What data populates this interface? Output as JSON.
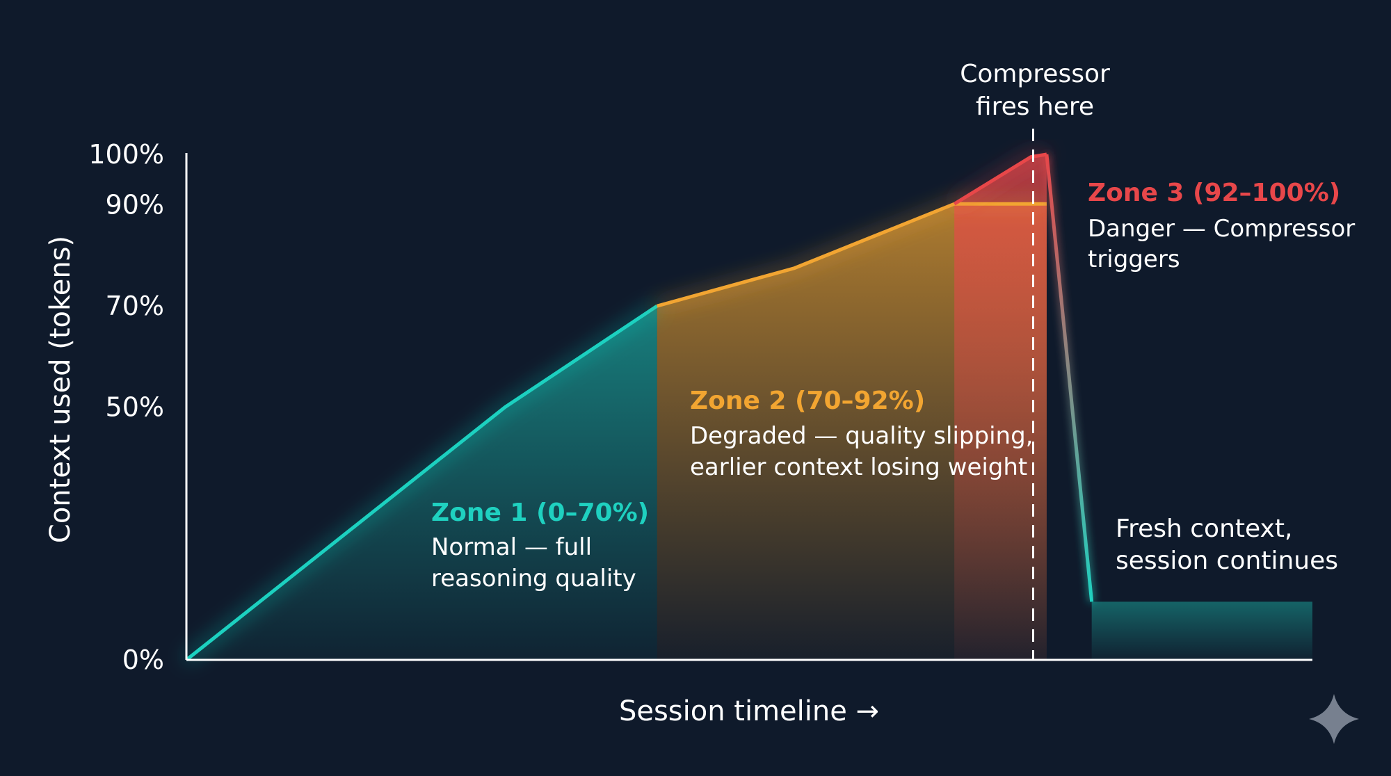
{
  "chart_data": {
    "type": "area",
    "title": "",
    "xlabel": "Session timeline →",
    "ylabel": "Context used (tokens)",
    "ylim": [
      0,
      100
    ],
    "xlim": [
      0,
      100
    ],
    "y_ticks": [
      "0%",
      "50%",
      "70%",
      "90%",
      "100%"
    ],
    "y_tick_values": [
      0,
      50,
      70,
      90,
      100
    ],
    "grid": false,
    "series": [
      {
        "zone": 1,
        "color": "#1fd1c0",
        "points": [
          [
            0,
            0
          ],
          [
            28.3,
            50
          ],
          [
            41.8,
            70
          ]
        ]
      },
      {
        "zone": 2,
        "color": "#f2a531",
        "points": [
          [
            41.8,
            70
          ],
          [
            54,
            77.5
          ],
          [
            68.2,
            90.2
          ],
          [
            76.4,
            90.2
          ]
        ]
      },
      {
        "zone": 3,
        "color": "#e8474a",
        "points": [
          [
            68.2,
            90.2
          ],
          [
            75,
            99.5
          ],
          [
            76.4,
            100
          ],
          [
            80.4,
            11.5
          ]
        ]
      },
      {
        "zone": 4,
        "color": "#1fd1c0",
        "points": [
          [
            80.4,
            11.5
          ],
          [
            100,
            11.5
          ]
        ]
      }
    ],
    "markers": [
      {
        "x": 75.2,
        "label": "Compressor fires here",
        "style": "dashed"
      }
    ],
    "annotations": {
      "compressor_line1": "Compressor",
      "compressor_line2": "fires here",
      "zone1_title": "Zone 1 (0–70%)",
      "zone1_desc1": "Normal — full",
      "zone1_desc2": "reasoning quality",
      "zone2_title": "Zone 2 (70–92%)",
      "zone2_desc1": "Degraded — quality slipping,",
      "zone2_desc2": "earlier context losing weight",
      "zone3_title": "Zone 3 (92–100%)",
      "zone3_desc1": "Danger — Compressor",
      "zone3_desc2": "triggers",
      "fresh_line1": "Fresh context,",
      "fresh_line2": "session continues"
    },
    "colors": {
      "background": "#0f1a2b",
      "zone1": "#1fd1c0",
      "zone2": "#f2a531",
      "zone3": "#e8474a",
      "axis": "#ffffff"
    }
  },
  "decor": {
    "logo_icon": "sparkle-icon"
  }
}
